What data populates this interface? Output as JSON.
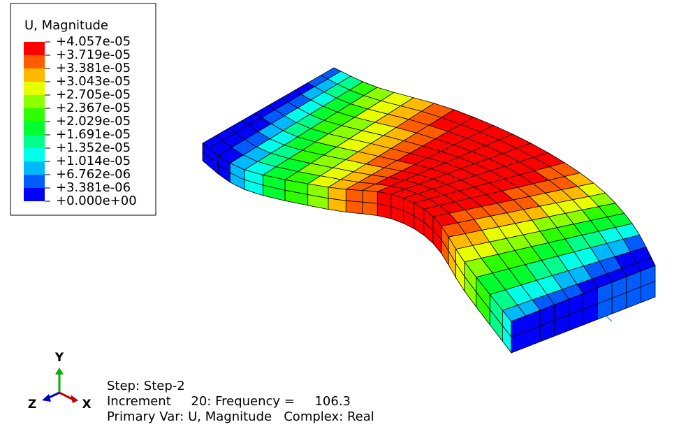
{
  "legend": {
    "title": "U, Magnitude",
    "labels": [
      "+4.057e-05",
      "+3.719e-05",
      "+3.381e-05",
      "+3.043e-05",
      "+2.705e-05",
      "+2.367e-05",
      "+2.029e-05",
      "+1.691e-05",
      "+1.352e-05",
      "+1.014e-05",
      "+6.762e-06",
      "+3.381e-06",
      "+0.000e+00"
    ],
    "colors": [
      "#ff0000",
      "#ff5c00",
      "#ffb900",
      "#e8ff00",
      "#8cff00",
      "#2eff00",
      "#00ff2e",
      "#00ff8b",
      "#00ffe8",
      "#00b9ff",
      "#005cff",
      "#0000ff"
    ]
  },
  "triad": {
    "y": "Y",
    "z": "Z",
    "x": "X"
  },
  "info": {
    "step": "Step: Step-2",
    "increment": "Increment     20: Frequency =     106.3",
    "primary": "Primary Var: U, Magnitude   Complex: Real"
  }
}
